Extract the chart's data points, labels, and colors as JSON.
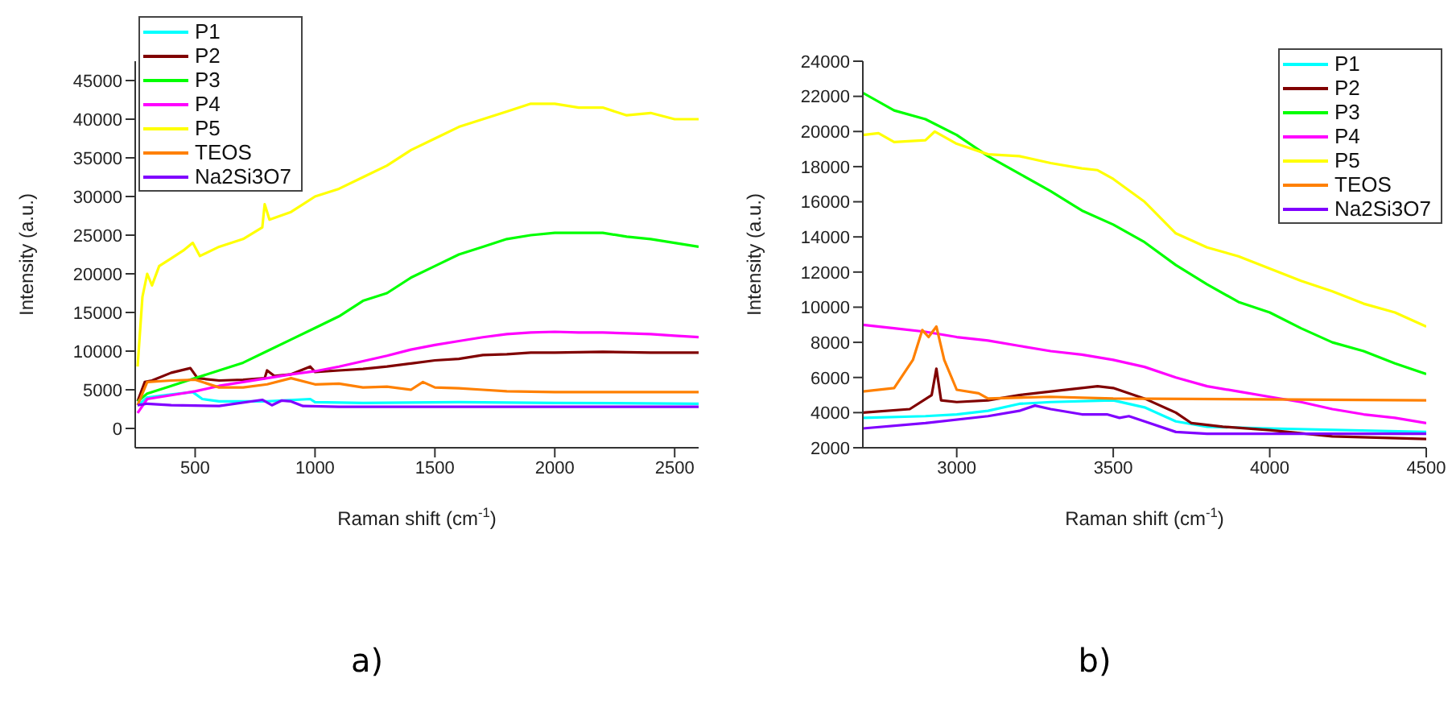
{
  "chart_data": [
    {
      "type": "line",
      "xlabel": "Raman shift (cm$^{-1}$)",
      "ylabel": "Intensity (a.u.)",
      "annotations": [
        "a)"
      ],
      "xlim": [
        250,
        2600
      ],
      "ylim": [
        -2500,
        47500
      ],
      "xticks": [
        500,
        1000,
        1500,
        2000,
        2500
      ],
      "yticks": [
        0,
        5000,
        10000,
        15000,
        20000,
        25000,
        30000,
        35000,
        40000,
        45000
      ],
      "legend": "top left",
      "marker": "none",
      "line_style": "solid",
      "series": [
        {
          "name": "P1",
          "color": "#00ffff",
          "x": [
            260,
            300,
            400,
            490,
            530,
            600,
            800,
            980,
            1000,
            1200,
            1600,
            2000,
            2600
          ],
          "values": [
            3000,
            4000,
            4400,
            4700,
            3800,
            3500,
            3500,
            3800,
            3400,
            3300,
            3400,
            3300,
            3200
          ]
        },
        {
          "name": "P2",
          "color": "#800000",
          "x": [
            260,
            290,
            320,
            400,
            480,
            510,
            600,
            700,
            790,
            800,
            830,
            900,
            980,
            1000,
            1100,
            1200,
            1300,
            1400,
            1500,
            1600,
            1700,
            1800,
            1900,
            2000,
            2200,
            2400,
            2600
          ],
          "values": [
            3500,
            6000,
            6200,
            7200,
            7800,
            6500,
            6200,
            6300,
            6500,
            7500,
            6800,
            7000,
            8000,
            7300,
            7500,
            7700,
            8000,
            8400,
            8800,
            9000,
            9500,
            9600,
            9800,
            9800,
            9900,
            9800,
            9800
          ]
        },
        {
          "name": "P3",
          "color": "#00ff00",
          "x": [
            260,
            300,
            400,
            500,
            600,
            700,
            800,
            900,
            1000,
            1100,
            1200,
            1300,
            1400,
            1500,
            1600,
            1700,
            1800,
            1900,
            2000,
            2100,
            2200,
            2300,
            2400,
            2500,
            2600
          ],
          "values": [
            3500,
            4500,
            5500,
            6500,
            7500,
            8500,
            10000,
            11500,
            13000,
            14500,
            16500,
            17500,
            19500,
            21000,
            22500,
            23500,
            24500,
            25000,
            25300,
            25300,
            25300,
            24800,
            24500,
            24000,
            23500
          ]
        },
        {
          "name": "P4",
          "color": "#ff00ff",
          "x": [
            260,
            300,
            400,
            500,
            600,
            700,
            800,
            900,
            1000,
            1100,
            1200,
            1300,
            1400,
            1500,
            1600,
            1700,
            1800,
            1900,
            2000,
            2100,
            2200,
            2300,
            2400,
            2500,
            2600
          ],
          "values": [
            2000,
            3800,
            4300,
            4800,
            5500,
            6000,
            6500,
            7000,
            7400,
            8000,
            8700,
            9400,
            10200,
            10800,
            11300,
            11800,
            12200,
            12400,
            12500,
            12400,
            12400,
            12300,
            12200,
            12000,
            11800
          ]
        },
        {
          "name": "P5",
          "color": "#ffff00",
          "x": [
            260,
            280,
            300,
            320,
            350,
            400,
            450,
            490,
            520,
            600,
            700,
            780,
            790,
            810,
            900,
            1000,
            1100,
            1200,
            1300,
            1400,
            1500,
            1600,
            1700,
            1800,
            1900,
            2000,
            2100,
            2200,
            2300,
            2400,
            2500,
            2600
          ],
          "values": [
            8000,
            17000,
            20000,
            18500,
            21000,
            22000,
            23000,
            24000,
            22300,
            23500,
            24500,
            26000,
            29000,
            27000,
            28000,
            30000,
            31000,
            32500,
            34000,
            36000,
            37500,
            39000,
            40000,
            41000,
            42000,
            42000,
            41500,
            41500,
            40500,
            40800,
            40000,
            40000
          ]
        },
        {
          "name": "TEOS",
          "color": "#ff8000",
          "x": [
            260,
            300,
            400,
            500,
            600,
            700,
            800,
            900,
            1000,
            1100,
            1200,
            1300,
            1400,
            1450,
            1500,
            1600,
            1700,
            1800,
            2000,
            2200,
            2600
          ],
          "values": [
            3000,
            6000,
            6200,
            6300,
            5300,
            5300,
            5700,
            6500,
            5700,
            5800,
            5300,
            5400,
            5000,
            6000,
            5300,
            5200,
            5000,
            4800,
            4700,
            4700,
            4700
          ]
        },
        {
          "name": "Na2Si3O7",
          "color": "#8000ff",
          "x": [
            260,
            300,
            400,
            600,
            780,
            820,
            860,
            900,
            950,
            1100,
            2600
          ],
          "values": [
            3000,
            3200,
            3000,
            2900,
            3700,
            3000,
            3600,
            3500,
            2900,
            2800,
            2800
          ]
        }
      ]
    },
    {
      "type": "line",
      "xlabel": "Raman shift (cm$^{-1}$)",
      "ylabel": "Intensity (a.u.)",
      "annotations": [
        "b)"
      ],
      "xlim": [
        2700,
        4500
      ],
      "ylim": [
        2000,
        24000
      ],
      "xticks": [
        3000,
        3500,
        4000,
        4500
      ],
      "yticks": [
        2000,
        4000,
        6000,
        8000,
        10000,
        12000,
        14000,
        16000,
        18000,
        20000,
        22000,
        24000
      ],
      "legend": "top right",
      "marker": "none",
      "line_style": "solid",
      "series": [
        {
          "name": "P1",
          "color": "#00ffff",
          "x": [
            2700,
            2900,
            3000,
            3100,
            3200,
            3300,
            3500,
            3600,
            3700,
            3800,
            4000,
            4500
          ],
          "values": [
            3700,
            3800,
            3900,
            4100,
            4500,
            4600,
            4700,
            4300,
            3500,
            3200,
            3100,
            2900
          ]
        },
        {
          "name": "P2",
          "color": "#800000",
          "x": [
            2700,
            2850,
            2920,
            2935,
            2950,
            3000,
            3100,
            3200,
            3300,
            3450,
            3500,
            3600,
            3700,
            3750,
            3850,
            4000,
            4200,
            4500
          ],
          "values": [
            4000,
            4200,
            5000,
            6500,
            4700,
            4600,
            4700,
            5000,
            5200,
            5500,
            5400,
            4800,
            4000,
            3400,
            3200,
            3000,
            2650,
            2500
          ]
        },
        {
          "name": "P3",
          "color": "#00ff00",
          "x": [
            2700,
            2800,
            2900,
            3000,
            3100,
            3200,
            3300,
            3400,
            3500,
            3600,
            3700,
            3800,
            3900,
            4000,
            4100,
            4200,
            4300,
            4400,
            4500
          ],
          "values": [
            22200,
            21200,
            20700,
            19800,
            18600,
            17600,
            16600,
            15500,
            14700,
            13700,
            12400,
            11300,
            10300,
            9700,
            8800,
            8000,
            7500,
            6800,
            6200
          ]
        },
        {
          "name": "P4",
          "color": "#ff00ff",
          "x": [
            2700,
            2800,
            2900,
            3000,
            3100,
            3200,
            3300,
            3400,
            3500,
            3600,
            3700,
            3800,
            3900,
            4000,
            4100,
            4200,
            4300,
            4400,
            4500
          ],
          "values": [
            9000,
            8800,
            8600,
            8300,
            8100,
            7800,
            7500,
            7300,
            7000,
            6600,
            6000,
            5500,
            5200,
            4900,
            4600,
            4200,
            3900,
            3700,
            3400
          ]
        },
        {
          "name": "P5",
          "color": "#ffff00",
          "x": [
            2700,
            2750,
            2800,
            2900,
            2930,
            3000,
            3100,
            3200,
            3300,
            3400,
            3450,
            3500,
            3600,
            3700,
            3800,
            3900,
            4000,
            4100,
            4200,
            4300,
            4400,
            4500
          ],
          "values": [
            19800,
            19900,
            19400,
            19500,
            20000,
            19300,
            18700,
            18600,
            18200,
            17900,
            17800,
            17300,
            16000,
            14200,
            13400,
            12900,
            12200,
            11500,
            10900,
            10200,
            9700,
            8900
          ]
        },
        {
          "name": "TEOS",
          "color": "#ff8000",
          "x": [
            2700,
            2800,
            2860,
            2890,
            2910,
            2935,
            2960,
            3000,
            3070,
            3100,
            3300,
            3500,
            4500
          ],
          "values": [
            5200,
            5400,
            7000,
            8700,
            8300,
            8900,
            7000,
            5300,
            5100,
            4800,
            4900,
            4800,
            4700
          ]
        },
        {
          "name": "Na2Si3O7",
          "color": "#8000ff",
          "x": [
            2700,
            2900,
            3100,
            3200,
            3250,
            3300,
            3400,
            3480,
            3520,
            3550,
            3600,
            3700,
            3800,
            4500
          ],
          "values": [
            3100,
            3400,
            3800,
            4100,
            4400,
            4200,
            3900,
            3900,
            3700,
            3800,
            3500,
            2900,
            2800,
            2800
          ]
        }
      ]
    }
  ]
}
